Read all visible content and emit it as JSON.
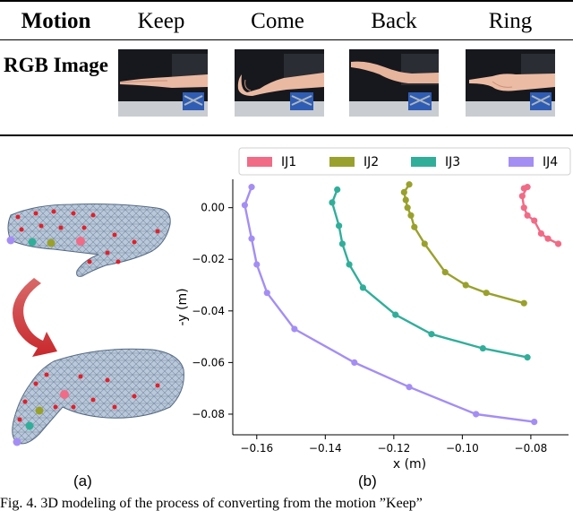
{
  "table": {
    "header_label": "Motion",
    "motions": [
      "Keep",
      "Come",
      "Back",
      "Ring"
    ],
    "row_label": "RGB Image"
  },
  "figure_a": {
    "label": "(a)"
  },
  "figure_b": {
    "label": "(b)"
  },
  "caption": "Fig. 4.   3D modeling of the process of converting from the motion ”Keep”",
  "chart_data": {
    "type": "line",
    "xlabel": "x (m)",
    "ylabel": "-y (m)",
    "xlim": [
      -0.167,
      -0.069
    ],
    "ylim": [
      -0.088,
      0.011
    ],
    "xticks": [
      -0.16,
      -0.14,
      -0.12,
      -0.1,
      -0.08
    ],
    "xtick_labels": [
      "−0.16",
      "−0.14",
      "−0.12",
      "−0.10",
      "−0.08"
    ],
    "yticks": [
      0.0,
      -0.02,
      -0.04,
      -0.06,
      -0.08
    ],
    "ytick_labels": [
      "0.00",
      "−0.02",
      "−0.04",
      "−0.06",
      "−0.08"
    ],
    "legend_position": "top",
    "grid": false,
    "series": [
      {
        "name": "IJ1",
        "color": "#f16b86",
        "points": [
          [
            -0.082,
            0.0075
          ],
          [
            -0.081,
            0.008
          ],
          [
            -0.0825,
            0.0045
          ],
          [
            -0.082,
            0.0
          ],
          [
            -0.081,
            -0.003
          ],
          [
            -0.079,
            -0.005
          ],
          [
            -0.077,
            -0.01
          ],
          [
            -0.075,
            -0.012
          ],
          [
            -0.072,
            -0.014
          ]
        ]
      },
      {
        "name": "IJ2",
        "color": "#99a12c",
        "points": [
          [
            -0.1155,
            0.009
          ],
          [
            -0.117,
            0.006
          ],
          [
            -0.1165,
            0.003
          ],
          [
            -0.116,
            0.0
          ],
          [
            -0.115,
            -0.003
          ],
          [
            -0.114,
            -0.0075
          ],
          [
            -0.111,
            -0.014
          ],
          [
            -0.105,
            -0.025
          ],
          [
            -0.099,
            -0.03
          ],
          [
            -0.093,
            -0.033
          ],
          [
            -0.082,
            -0.037
          ]
        ]
      },
      {
        "name": "IJ3",
        "color": "#31ae9a",
        "points": [
          [
            -0.1365,
            0.007
          ],
          [
            -0.138,
            0.002
          ],
          [
            -0.136,
            -0.007
          ],
          [
            -0.135,
            -0.014
          ],
          [
            -0.133,
            -0.022
          ],
          [
            -0.129,
            -0.031
          ],
          [
            -0.1195,
            -0.0415
          ],
          [
            -0.109,
            -0.049
          ],
          [
            -0.094,
            -0.0545
          ],
          [
            -0.081,
            -0.058
          ]
        ]
      },
      {
        "name": "IJ4",
        "color": "#a48ef4",
        "points": [
          [
            -0.1615,
            0.008
          ],
          [
            -0.1635,
            0.001
          ],
          [
            -0.1615,
            -0.012
          ],
          [
            -0.16,
            -0.022
          ],
          [
            -0.157,
            -0.033
          ],
          [
            -0.149,
            -0.047
          ],
          [
            -0.1315,
            -0.06
          ],
          [
            -0.1155,
            -0.0695
          ],
          [
            -0.096,
            -0.08
          ],
          [
            -0.079,
            -0.083
          ]
        ]
      }
    ]
  }
}
